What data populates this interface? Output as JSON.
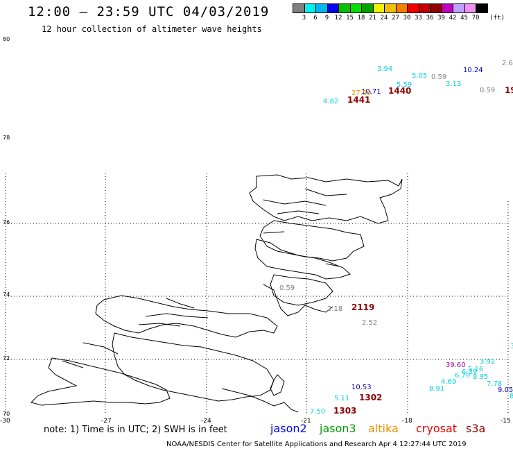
{
  "header": {
    "title": "12:00 – 23:59 UTC 04/03/2019",
    "subtitle": "12 hour collection of altimeter wave heights"
  },
  "colorbar": {
    "colors": [
      "#808080",
      "#00f0f0",
      "#00b4f0",
      "#0000f0",
      "#00c000",
      "#00e000",
      "#00a000",
      "#f0f000",
      "#f0c000",
      "#f08000",
      "#f00000",
      "#c00000",
      "#900000",
      "#c000c0",
      "#c0a0ff",
      "#f090f0",
      "#000000"
    ],
    "labels": [
      "3",
      "6",
      "9",
      "12",
      "15",
      "18",
      "21",
      "24",
      "27",
      "30",
      "33",
      "36",
      "39",
      "42",
      "45",
      "70"
    ],
    "unit": "(ft)"
  },
  "axes": {
    "lat_labels": [
      "80",
      "78",
      "76",
      "74",
      "72",
      "70"
    ],
    "lon_labels": [
      "-30",
      "-27",
      "-24",
      "-21",
      "-18",
      "-15"
    ]
  },
  "observations": [
    {
      "text": "2.6",
      "color": "#808080",
      "size": "small"
    },
    {
      "text": "3.94",
      "color": "#00d0e0",
      "size": "small"
    },
    {
      "text": "5.05",
      "color": "#00d0e0",
      "size": "small"
    },
    {
      "text": "0.59",
      "color": "#808080",
      "size": "small"
    },
    {
      "text": "10.24",
      "color": "#0000c0",
      "size": "small"
    },
    {
      "text": "5.59",
      "color": "#00d0e0",
      "size": "small"
    },
    {
      "text": "3.13",
      "color": "#00d0e0",
      "size": "small"
    },
    {
      "text": "10.71",
      "color": "#0000c0",
      "size": "small"
    },
    {
      "text": "27.50",
      "color": "#f09000",
      "size": "small"
    },
    {
      "text": "1440",
      "color": "#900000",
      "size": "big"
    },
    {
      "text": "0.59",
      "color": "#808080",
      "size": "small"
    },
    {
      "text": "19",
      "color": "#900000",
      "size": "big"
    },
    {
      "text": "4.82",
      "color": "#00d0e0",
      "size": "small"
    },
    {
      "text": "1441",
      "color": "#900000",
      "size": "big"
    },
    {
      "text": "0.59",
      "color": "#808080",
      "size": "small"
    },
    {
      "text": "2.18",
      "color": "#808080",
      "size": "small"
    },
    {
      "text": "2119",
      "color": "#900000",
      "size": "big"
    },
    {
      "text": "2.52",
      "color": "#808080",
      "size": "small"
    },
    {
      "text": "3",
      "color": "#00d0e0",
      "size": "small"
    },
    {
      "text": "39.60",
      "color": "#a000a0",
      "size": "small"
    },
    {
      "text": "3.92",
      "color": "#00d0e0",
      "size": "small"
    },
    {
      "text": "5.16",
      "color": "#00d0e0",
      "size": "small"
    },
    {
      "text": "6.39",
      "color": "#00d0e0",
      "size": "small"
    },
    {
      "text": "6.79",
      "color": "#00d0e0",
      "size": "small"
    },
    {
      "text": "8.95",
      "color": "#00d0e0",
      "size": "small"
    },
    {
      "text": "4.69",
      "color": "#00d0e0",
      "size": "small"
    },
    {
      "text": "7.78",
      "color": "#00d0e0",
      "size": "small"
    },
    {
      "text": "8.91",
      "color": "#00d0e0",
      "size": "small"
    },
    {
      "text": "9.05",
      "color": "#0000c0",
      "size": "small"
    },
    {
      "text": "8",
      "color": "#00d0e0",
      "size": "small"
    },
    {
      "text": "10.53",
      "color": "#0000c0",
      "size": "small"
    },
    {
      "text": "5.11",
      "color": "#00d0e0",
      "size": "small"
    },
    {
      "text": "1302",
      "color": "#900000",
      "size": "big"
    },
    {
      "text": "7.50",
      "color": "#00d0e0",
      "size": "small"
    },
    {
      "text": "1303",
      "color": "#900000",
      "size": "big"
    }
  ],
  "footer": {
    "note": "note: 1) Time is in UTC; 2) SWH is in feet",
    "satellites": [
      {
        "name": "jason2",
        "color": "#0000e0"
      },
      {
        "name": "jason3",
        "color": "#00a000"
      },
      {
        "name": "altika",
        "color": "#f09000"
      },
      {
        "name": "cryosat",
        "color": "#e00000"
      },
      {
        "name": "s3a",
        "color": "#900000"
      }
    ],
    "credit": "NOAA/NESDIS Center for Satellite Applications and Research   Apr  4 12:27:44 UTC 2019"
  }
}
